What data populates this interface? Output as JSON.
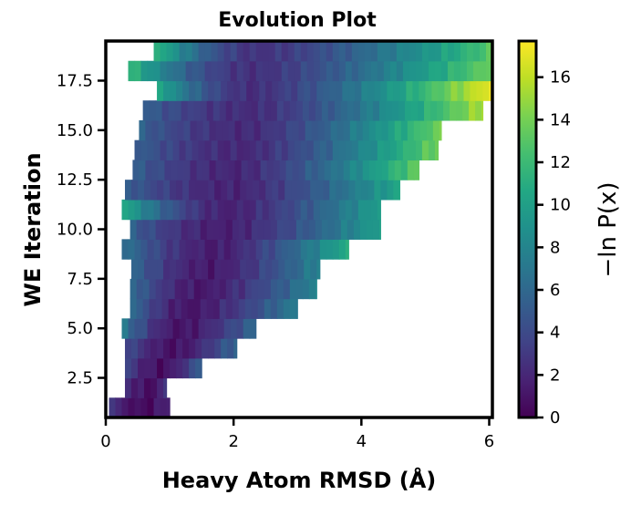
{
  "chart_data": {
    "type": "heatmap",
    "title": "Evolution Plot",
    "xlabel": "Heavy Atom RMSD (Å)",
    "ylabel": "WE Iteration",
    "colorbar_label": "−ln P(x)",
    "colormap": "viridis",
    "xlim": [
      0,
      6.05
    ],
    "ylim": [
      0.5,
      19.5
    ],
    "clim": [
      0,
      17.7
    ],
    "xticks": [
      0,
      2,
      4,
      6
    ],
    "xtick_labels": [
      "0",
      "2",
      "4",
      "6"
    ],
    "yticks": [
      2.5,
      5.0,
      7.5,
      10.0,
      12.5,
      15.0,
      17.5
    ],
    "ytick_labels": [
      "2.5",
      "5.0",
      "7.5",
      "10.0",
      "12.5",
      "15.0",
      "17.5"
    ],
    "cbar_ticks": [
      0,
      2,
      4,
      6,
      8,
      10,
      12,
      14,
      16
    ],
    "cbar_tick_labels": [
      "0",
      "2",
      "4",
      "6",
      "8",
      "10",
      "12",
      "14",
      "16"
    ],
    "iterations": [
      1,
      2,
      3,
      4,
      5,
      6,
      7,
      8,
      9,
      10,
      11,
      12,
      13,
      14,
      15,
      16,
      17,
      18,
      19
    ],
    "rmsd_min": [
      0.05,
      0.3,
      0.3,
      0.3,
      0.25,
      0.38,
      0.38,
      0.4,
      0.25,
      0.38,
      0.25,
      0.3,
      0.42,
      0.45,
      0.52,
      0.58,
      0.8,
      0.35,
      0.75
    ],
    "rmsd_max": [
      1.0,
      0.95,
      1.5,
      2.05,
      2.35,
      3.0,
      3.3,
      3.35,
      3.8,
      4.3,
      4.3,
      4.6,
      4.9,
      5.2,
      5.25,
      5.9,
      6.05,
      6.05,
      6.05
    ],
    "min_value_rmsd": [
      0.6,
      0.7,
      0.9,
      1.1,
      1.2,
      1.35,
      1.5,
      1.65,
      1.75,
      1.85,
      1.95,
      2.0,
      2.05,
      2.15,
      2.2,
      2.3,
      2.3,
      2.3,
      2.4
    ],
    "left_edge_value": [
      3,
      3,
      4,
      4.5,
      7.5,
      6.5,
      6.5,
      6,
      7,
      5.5,
      11,
      5.5,
      5.5,
      5.5,
      5.5,
      5.5,
      11,
      12,
      12
    ],
    "right_edge_value": [
      2,
      3,
      5.5,
      6,
      6,
      7.5,
      8,
      8,
      11,
      10,
      10,
      10.5,
      13.5,
      14,
      14,
      15.5,
      17.5,
      14,
      13
    ]
  }
}
